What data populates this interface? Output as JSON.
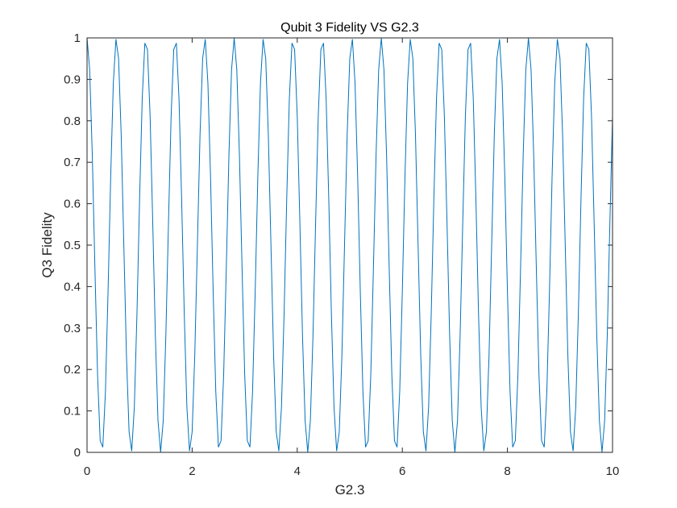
{
  "chart_data": {
    "type": "line",
    "title": "Qubit 3 Fidelity VS G2.3",
    "xlabel": "G2.3",
    "ylabel": "Q3 Fidelity",
    "color": "#0072bd",
    "xlim": [
      0,
      10
    ],
    "xticks": [
      0,
      2,
      4,
      6,
      8,
      10
    ],
    "ylim": [
      0,
      1
    ],
    "yticks": [
      0,
      0.1,
      0.2,
      0.3,
      0.4,
      0.5,
      0.6,
      0.7,
      0.8,
      0.9,
      1
    ],
    "x": [
      0,
      0.05,
      0.1,
      0.15,
      0.2,
      0.25,
      0.3,
      0.35,
      0.4,
      0.45,
      0.5,
      0.55,
      0.6,
      0.65,
      0.7,
      0.75,
      0.8,
      0.85,
      0.9,
      0.95,
      1,
      1.05,
      1.1,
      1.15,
      1.2,
      1.25,
      1.3,
      1.35,
      1.4,
      1.45,
      1.5,
      1.55,
      1.6,
      1.65,
      1.7,
      1.75,
      1.8,
      1.85,
      1.9,
      1.95,
      2,
      2.05,
      2.1,
      2.15,
      2.2,
      2.25,
      2.3,
      2.35,
      2.4,
      2.45,
      2.5,
      2.55,
      2.6,
      2.65,
      2.7,
      2.75,
      2.8,
      2.85,
      2.9,
      2.95,
      3,
      3.05,
      3.1,
      3.15,
      3.2,
      3.25,
      3.3,
      3.35,
      3.4,
      3.45,
      3.5,
      3.55,
      3.6,
      3.65,
      3.7,
      3.75,
      3.8,
      3.85,
      3.9,
      3.95,
      4,
      4.05,
      4.1,
      4.15,
      4.2,
      4.25,
      4.3,
      4.35,
      4.4,
      4.45,
      4.5,
      4.55,
      4.6,
      4.65,
      4.7,
      4.75,
      4.8,
      4.85,
      4.9,
      4.95,
      5,
      5.05,
      5.1,
      5.15,
      5.2,
      5.25,
      5.3,
      5.35,
      5.4,
      5.45,
      5.5,
      5.55,
      5.6,
      5.65,
      5.7,
      5.75,
      5.8,
      5.85,
      5.9,
      5.95,
      6,
      6.05,
      6.1,
      6.15,
      6.2,
      6.25,
      6.3,
      6.35,
      6.4,
      6.45,
      6.5,
      6.55,
      6.6,
      6.65,
      6.7,
      6.75,
      6.8,
      6.85,
      6.9,
      6.95,
      7,
      7.05,
      7.1,
      7.15,
      7.2,
      7.25,
      7.3,
      7.35,
      7.4,
      7.45,
      7.5,
      7.55,
      7.6,
      7.65,
      7.7,
      7.75,
      7.8,
      7.85,
      7.9,
      7.95,
      8,
      8.05,
      8.1,
      8.15,
      8.2,
      8.25,
      8.3,
      8.35,
      8.4,
      8.45,
      8.5,
      8.55,
      8.6,
      8.65,
      8.7,
      8.75,
      8.8,
      8.85,
      8.9,
      8.95,
      9,
      9.05,
      9.1,
      9.15,
      9.2,
      9.25,
      9.3,
      9.35,
      9.4,
      9.45,
      9.5,
      9.55,
      9.6,
      9.65,
      9.7,
      9.75,
      9.8,
      9.85,
      9.9,
      9.95,
      10
    ],
    "values": [
      1,
      0.9233,
      0.7169,
      0.4441,
      0.1883,
      0.0281,
      0.0125,
      0.1464,
      0.3887,
      0.6651,
      0.8908,
      0.9969,
      0.9505,
      0.766,
      0.5,
      0.234,
      0.0495,
      0.0031,
      0.1091,
      0.3349,
      0.6113,
      0.8536,
      0.9875,
      0.972,
      0.8117,
      0.5559,
      0.283,
      0.0766,
      0,
      0.0766,
      0.283,
      0.5559,
      0.8117,
      0.972,
      0.9875,
      0.8536,
      0.6113,
      0.3349,
      0.1091,
      0.0031,
      0.0495,
      0.234,
      0.5,
      0.766,
      0.9505,
      0.9969,
      0.8908,
      0.6651,
      0.3887,
      0.1464,
      0.0125,
      0.0281,
      0.1883,
      0.4441,
      0.7169,
      0.9233,
      1,
      0.9233,
      0.7169,
      0.4441,
      0.1883,
      0.0281,
      0.0125,
      0.1464,
      0.3887,
      0.6651,
      0.8908,
      0.9969,
      0.9505,
      0.766,
      0.5,
      0.234,
      0.0495,
      0.0031,
      0.1091,
      0.3349,
      0.6113,
      0.8536,
      0.9875,
      0.972,
      0.8117,
      0.5559,
      0.283,
      0.0766,
      0,
      0.0766,
      0.283,
      0.5559,
      0.8117,
      0.972,
      0.9875,
      0.8536,
      0.6113,
      0.3349,
      0.1091,
      0.0031,
      0.0495,
      0.234,
      0.5,
      0.766,
      0.9505,
      0.9969,
      0.8908,
      0.6651,
      0.3887,
      0.1464,
      0.0125,
      0.0281,
      0.1883,
      0.4441,
      0.7169,
      0.9233,
      1,
      0.9233,
      0.7169,
      0.4441,
      0.1883,
      0.0281,
      0.0125,
      0.1464,
      0.3887,
      0.6651,
      0.8908,
      0.9969,
      0.9505,
      0.766,
      0.5,
      0.234,
      0.0495,
      0.0031,
      0.1091,
      0.3349,
      0.6113,
      0.8536,
      0.9875,
      0.972,
      0.8117,
      0.5559,
      0.283,
      0.0766,
      0,
      0.0766,
      0.283,
      0.5559,
      0.8117,
      0.972,
      0.9875,
      0.8536,
      0.6113,
      0.3349,
      0.1091,
      0.0031,
      0.0495,
      0.234,
      0.5,
      0.766,
      0.9505,
      0.9969,
      0.8908,
      0.6651,
      0.3887,
      0.1464,
      0.0125,
      0.0281,
      0.1883,
      0.4441,
      0.7169,
      0.9233,
      1,
      0.9233,
      0.7169,
      0.4441,
      0.1883,
      0.0281,
      0.0125,
      0.1464,
      0.3887,
      0.6651,
      0.8908,
      0.9969,
      0.9505,
      0.766,
      0.5,
      0.234,
      0.0495,
      0.0031,
      0.1091,
      0.3349,
      0.6113,
      0.8536,
      0.9875,
      0.972,
      0.8117,
      0.5559,
      0.283,
      0.0766,
      0,
      0.0766,
      0.283,
      0.5559,
      0.8117
    ]
  }
}
